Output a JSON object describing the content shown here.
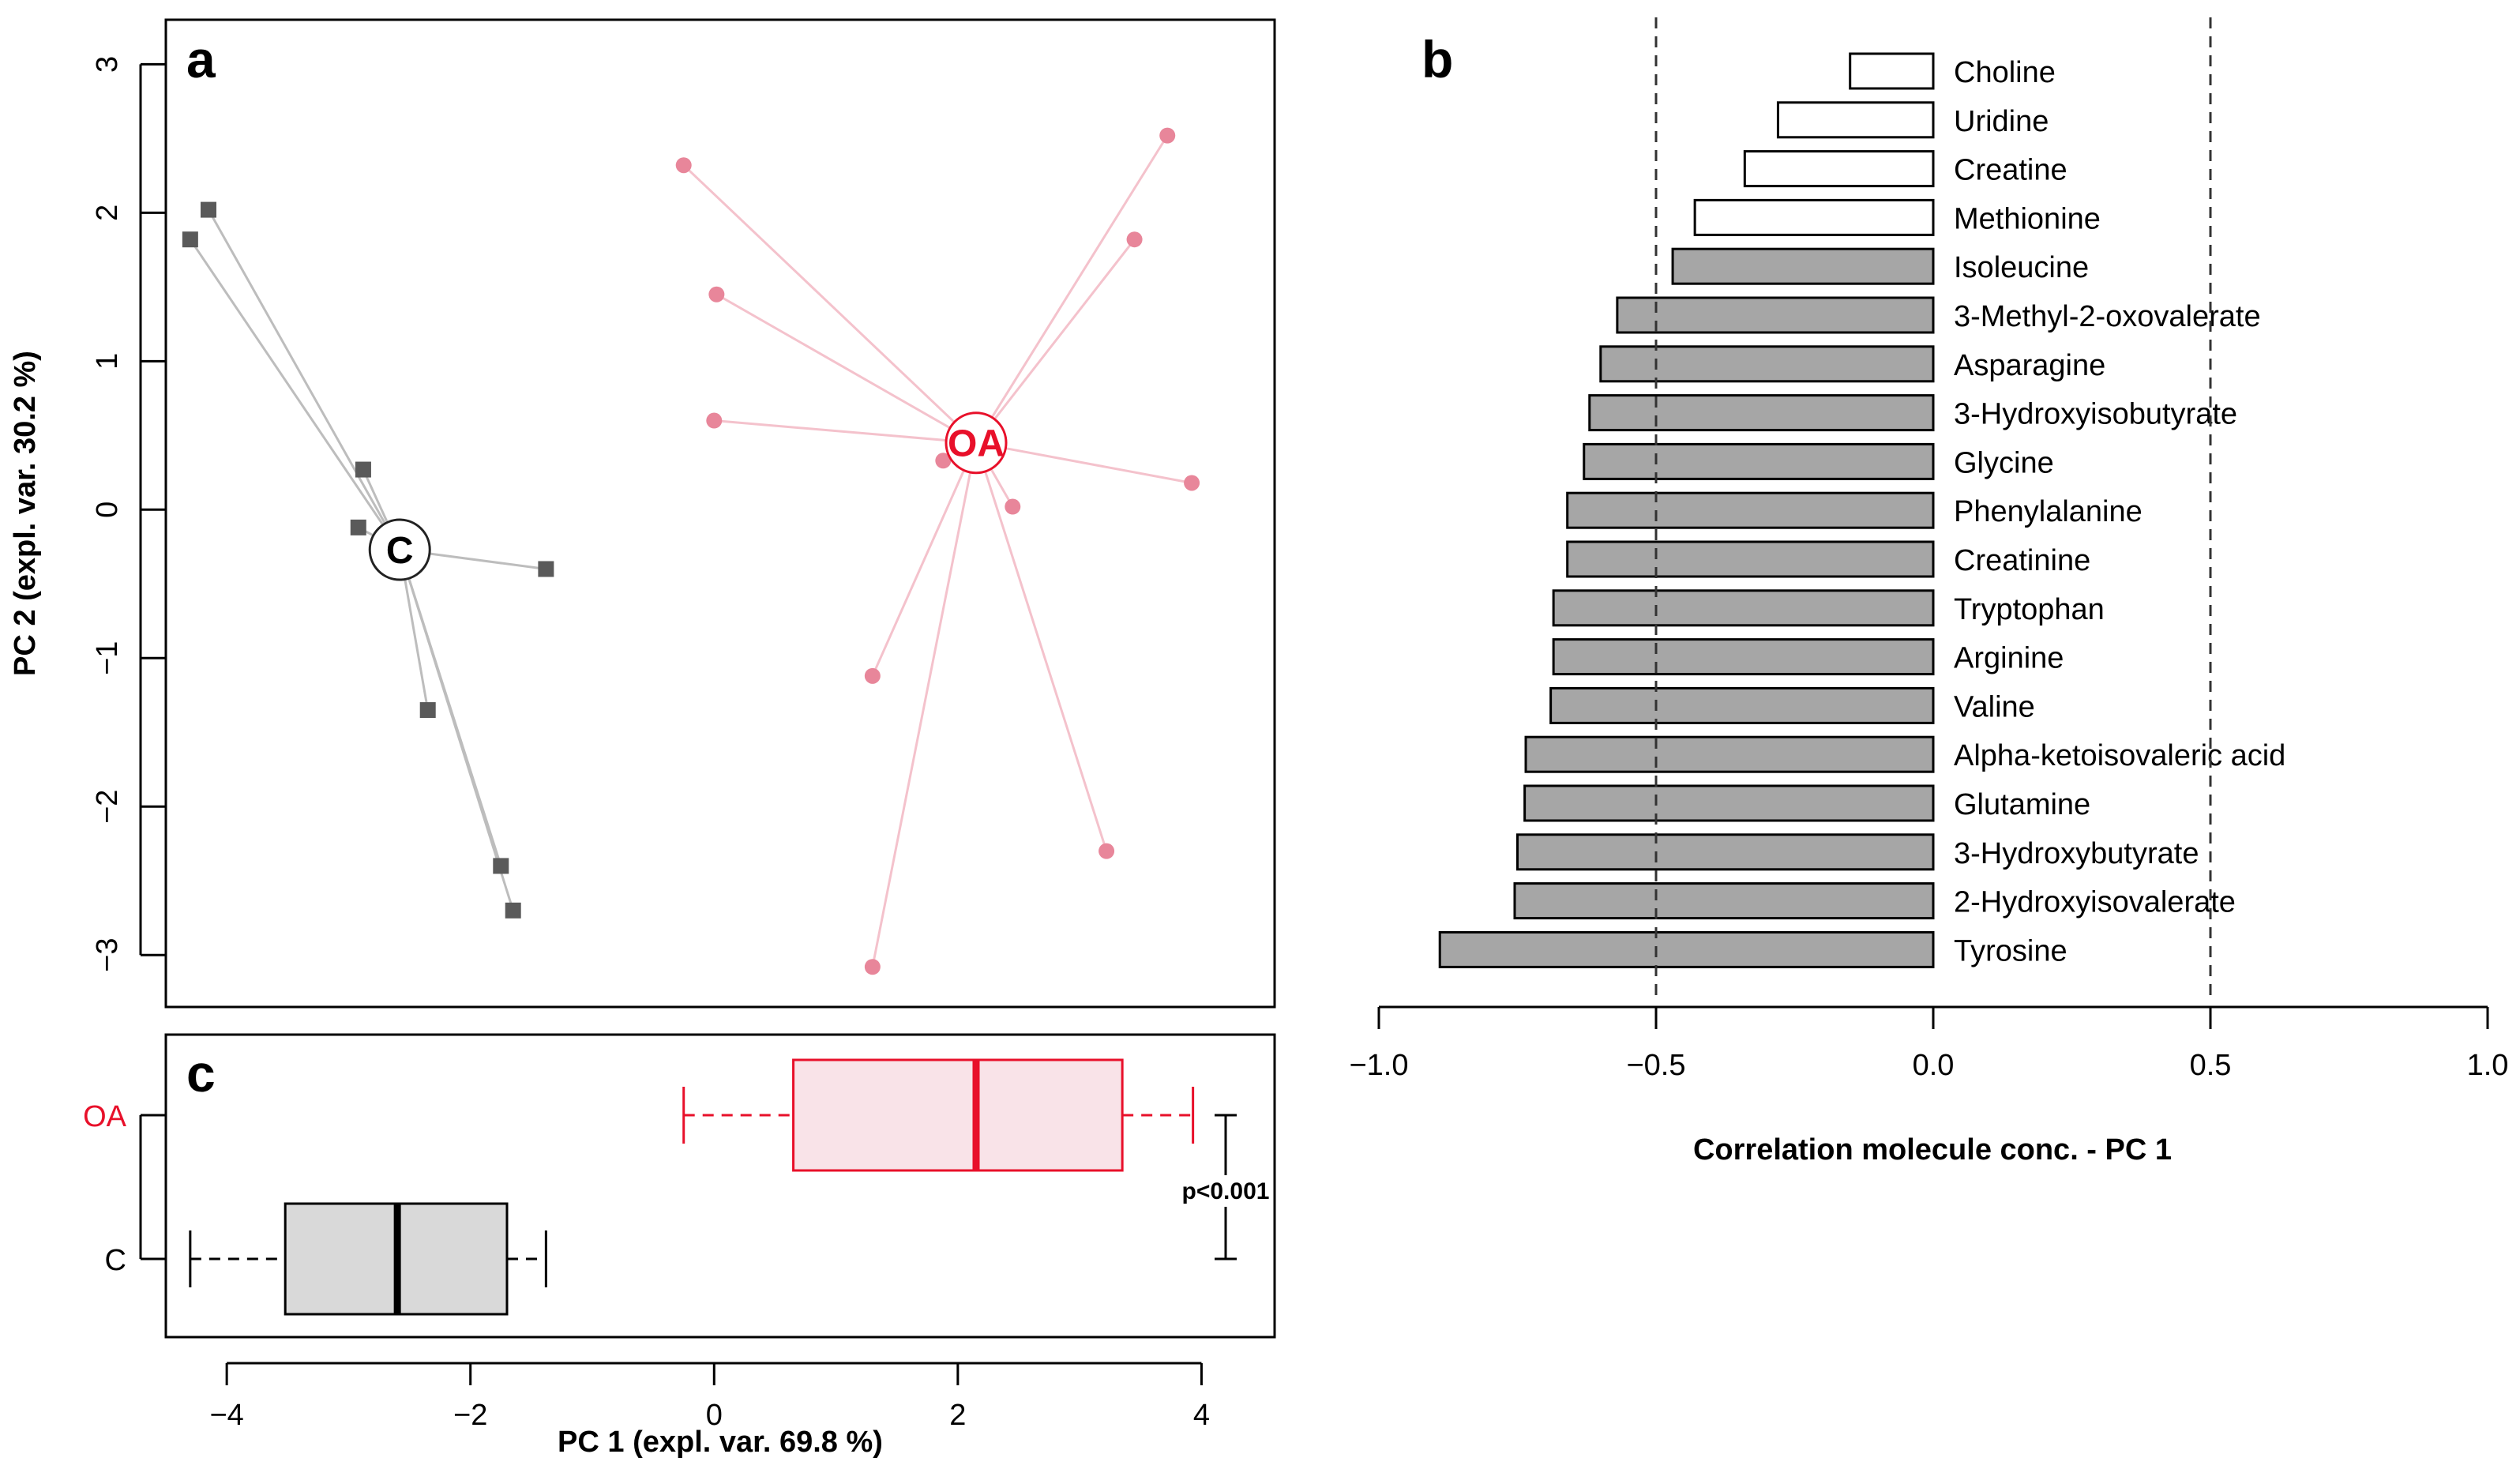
{
  "colors": {
    "control": "#5a5a5a",
    "control_line": "#bdbdbd",
    "oa": "#e8869a",
    "oa_line": "#f4c2cc",
    "oa_label": "#e8102a",
    "box_c_fill": "#d9d9d9",
    "box_oa_fill": "#f9e3e8",
    "box_oa_stroke": "#e8102a",
    "bar_neg": "#a6a6a6"
  },
  "chart_data": [
    {
      "panel": "a",
      "type": "scatter",
      "title": "a",
      "xlabel": "",
      "ylabel": "PC 2 (expl. var. 30.2 %)",
      "xlim": [
        -4.5,
        4.6
      ],
      "ylim": [
        -3.35,
        3.3
      ],
      "yticks": [
        3,
        2,
        1,
        0,
        -1,
        -2,
        -3
      ],
      "ytick_labels": [
        "3",
        "2",
        "1",
        "0",
        "−1",
        "−2",
        "−3"
      ],
      "series": [
        {
          "name": "C",
          "marker": "square",
          "centroid": {
            "label": "C",
            "x": -2.58,
            "y": -0.27
          },
          "x": [
            -4.15,
            -4.3,
            -2.88,
            -2.92,
            -1.38,
            -2.35,
            -1.75,
            -1.65
          ],
          "y": [
            2.02,
            1.82,
            0.27,
            -0.12,
            -0.4,
            -1.35,
            -2.4,
            -2.7
          ]
        },
        {
          "name": "OA",
          "marker": "circle",
          "centroid": {
            "label": "OA",
            "x": 2.15,
            "y": 0.45
          },
          "x": [
            -0.25,
            0.02,
            0.0,
            1.88,
            2.45,
            3.72,
            3.45,
            3.92,
            1.3,
            3.22,
            1.3
          ],
          "y": [
            2.32,
            1.45,
            0.6,
            0.33,
            0.02,
            2.52,
            1.82,
            0.18,
            -1.12,
            -2.3,
            -3.08
          ]
        }
      ]
    },
    {
      "panel": "b",
      "type": "bar",
      "orientation": "horizontal",
      "title": "b",
      "xlabel": "Correlation molecule conc. - PC 1",
      "xlim": [
        -1.0,
        1.0
      ],
      "xticks": [
        -1.0,
        -0.5,
        0.0,
        0.5,
        1.0
      ],
      "xtick_labels": [
        "−1.0",
        "−0.5",
        "0.0",
        "0.5",
        "1.0"
      ],
      "reference_lines": [
        -0.5,
        0.5
      ],
      "categories": [
        "Choline",
        "Uridine",
        "Creatine",
        "Methionine",
        "Isoleucine",
        "3-Methyl-2-oxovalerate",
        "Asparagine",
        "3-Hydroxyisobutyrate",
        "Glycine",
        "Phenylalanine",
        "Creatinine",
        "Tryptophan",
        "Arginine",
        "Valine",
        "Alpha-ketoisovaleric acid",
        "Glutamine",
        "3-Hydroxybutyrate",
        "2-Hydroxyisovalerate",
        "Tyrosine"
      ],
      "values": [
        -0.15,
        -0.28,
        -0.34,
        -0.43,
        -0.47,
        -0.57,
        -0.6,
        -0.62,
        -0.63,
        -0.66,
        -0.66,
        -0.685,
        -0.685,
        -0.69,
        -0.735,
        -0.737,
        -0.75,
        -0.755,
        -0.89
      ],
      "filled": [
        false,
        false,
        false,
        false,
        true,
        true,
        true,
        true,
        true,
        true,
        true,
        true,
        true,
        true,
        true,
        true,
        true,
        true,
        true
      ]
    },
    {
      "panel": "c",
      "type": "boxplot",
      "title": "c",
      "xlabel": "PC 1 (expl. var. 69.8 %)",
      "xlim": [
        -4.5,
        4.6
      ],
      "xticks": [
        -4,
        -2,
        0,
        2,
        4
      ],
      "xtick_labels": [
        "−4",
        "−2",
        "0",
        "2",
        "4"
      ],
      "groups": [
        {
          "name": "OA",
          "min": -0.25,
          "q1": 0.65,
          "median": 2.15,
          "q3": 3.35,
          "max": 3.93
        },
        {
          "name": "C",
          "min": -4.3,
          "q1": -3.52,
          "median": -2.6,
          "q3": -1.7,
          "max": -1.38
        }
      ],
      "annotation": "p<0.001"
    }
  ]
}
